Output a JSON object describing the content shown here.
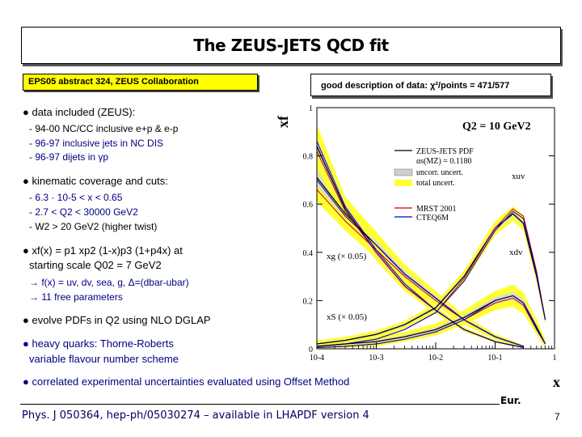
{
  "title": "The ZEUS-JETS QCD fit",
  "reference_box": "EPS05 abstract 324, ZEUS Collaboration",
  "chi2_box": {
    "prefix": "good description of data:",
    "symbol": "χ²/points = 471/577"
  },
  "bullets": {
    "data_heading": "data included (ZEUS):",
    "data_items": [
      "- 94-00 NC/CC inclusive e+p & e-p",
      "- 96-97 inclusive jets in NC DIS",
      "- 96-97 dijets in γp"
    ],
    "kin_heading": "kinematic coverage and cuts:",
    "kin_items": [
      "- 6.3 · 10-5 < x < 0.65",
      "- 2.7 < Q2 < 30000 GeV2",
      "- W2 > 20 GeV2 (higher twist)"
    ],
    "param_line1": "xf(x) = p1 xp2 (1-x)p3 (1+p4x) at",
    "param_line2": "starting scale Q02 = 7 GeV2",
    "param_items": [
      "→ f(x) = uv, dv, sea, g, Δ=(dbar-ubar)",
      "→ 11 free parameters"
    ],
    "evolve": "evolve PDFs in Q2 using NLO DGLAP",
    "heavy_line1": "heavy quarks: Thorne-Roberts",
    "heavy_line2": "variable flavour number scheme",
    "correlated": "correlated experimental uncertainties evaluated using Offset Method"
  },
  "footer": {
    "reference": "Phys. J 050364, hep-ph/05030274 – available in LHAPDF version 4",
    "eur": "Eur.",
    "page_number": "7"
  },
  "chart_data": {
    "type": "line",
    "title": "Q2 = 10 GeV2",
    "xlabel": "x",
    "ylabel": "xf",
    "xscale": "log",
    "xlim": [
      0.0001,
      1
    ],
    "ylim": [
      0,
      1
    ],
    "yticks": [
      0,
      0.2,
      0.4,
      0.6,
      0.8,
      1
    ],
    "xticks": [
      0.0001,
      0.001,
      0.01,
      0.1,
      1
    ],
    "ytick_labels": [
      "0",
      "0.2",
      "0.4",
      "0.6",
      "0.8",
      "1"
    ],
    "xtick_labels": [
      "10-4",
      "10-3",
      "10-2",
      "10-1",
      "1"
    ],
    "legend": {
      "pdf_name": "ZEUS-JETS PDF",
      "alphas": "αs(MZ) = 0.1180",
      "uncorr": "uncorr. uncert.",
      "total": "total uncert.",
      "mrst": "MRST 2001",
      "cteq": "CTEQ6M"
    },
    "curve_labels": {
      "xuv": "xuv",
      "xdv": "xdv",
      "xg": "xg (× 0.05)",
      "xS": "xS (× 0.05)"
    },
    "series": [
      {
        "name": "xg (x0.05) ZEUS-JETS",
        "color": "#000000",
        "x": [
          0.0001,
          0.0003,
          0.001,
          0.003,
          0.01,
          0.03,
          0.1,
          0.3
        ],
        "y": [
          0.71,
          0.56,
          0.43,
          0.31,
          0.21,
          0.12,
          0.05,
          0.01
        ],
        "err": [
          0.1,
          0.07,
          0.055,
          0.04,
          0.03,
          0.02,
          0.012,
          0.005
        ]
      },
      {
        "name": "xg (x0.05) MRST 2001",
        "color": "#cc0000",
        "x": [
          0.0001,
          0.0003,
          0.001,
          0.003,
          0.01,
          0.03,
          0.1,
          0.3
        ],
        "y": [
          0.66,
          0.53,
          0.41,
          0.3,
          0.2,
          0.12,
          0.05,
          0.01
        ]
      },
      {
        "name": "xg (x0.05) CTEQ6M",
        "color": "#0000cc",
        "x": [
          0.0001,
          0.0003,
          0.001,
          0.003,
          0.01,
          0.03,
          0.1,
          0.3
        ],
        "y": [
          0.7,
          0.55,
          0.43,
          0.31,
          0.21,
          0.12,
          0.05,
          0.01
        ]
      },
      {
        "name": "xS (x0.05) ZEUS-JETS",
        "color": "#000000",
        "x": [
          0.0001,
          0.0003,
          0.001,
          0.003,
          0.01,
          0.03,
          0.1,
          0.3
        ],
        "y": [
          0.84,
          0.58,
          0.4,
          0.26,
          0.16,
          0.08,
          0.03,
          0.005
        ],
        "err": [
          0.09,
          0.05,
          0.035,
          0.02,
          0.014,
          0.009,
          0.005,
          0.002
        ]
      },
      {
        "name": "xS (x0.05) MRST 2001",
        "color": "#cc0000",
        "x": [
          0.0001,
          0.0003,
          0.001,
          0.003,
          0.01,
          0.03,
          0.1,
          0.3
        ],
        "y": [
          0.82,
          0.57,
          0.4,
          0.26,
          0.16,
          0.08,
          0.03,
          0.005
        ]
      },
      {
        "name": "xS (x0.05) CTEQ6M",
        "color": "#0000cc",
        "x": [
          0.0001,
          0.0003,
          0.001,
          0.003,
          0.01,
          0.03,
          0.1,
          0.3
        ],
        "y": [
          0.86,
          0.59,
          0.41,
          0.27,
          0.16,
          0.08,
          0.03,
          0.005
        ]
      },
      {
        "name": "xuv ZEUS-JETS",
        "color": "#000000",
        "x": [
          0.0001,
          0.0003,
          0.001,
          0.003,
          0.01,
          0.03,
          0.1,
          0.2,
          0.3,
          0.5,
          0.7
        ],
        "y": [
          0.02,
          0.035,
          0.06,
          0.1,
          0.17,
          0.3,
          0.5,
          0.56,
          0.52,
          0.3,
          0.12
        ],
        "err": [
          0.015,
          0.015,
          0.015,
          0.015,
          0.02,
          0.025,
          0.03,
          0.03,
          0.03,
          0.025,
          0.02
        ]
      },
      {
        "name": "xuv MRST 2001",
        "color": "#cc0000",
        "x": [
          0.0001,
          0.0003,
          0.001,
          0.003,
          0.01,
          0.03,
          0.1,
          0.2,
          0.3,
          0.5,
          0.7
        ],
        "y": [
          0.01,
          0.02,
          0.04,
          0.08,
          0.15,
          0.29,
          0.5,
          0.58,
          0.55,
          0.32,
          0.12
        ]
      },
      {
        "name": "xuv CTEQ6M",
        "color": "#0000cc",
        "x": [
          0.0001,
          0.0003,
          0.001,
          0.003,
          0.01,
          0.03,
          0.1,
          0.2,
          0.3,
          0.5,
          0.7
        ],
        "y": [
          0.01,
          0.02,
          0.04,
          0.08,
          0.15,
          0.28,
          0.49,
          0.57,
          0.54,
          0.31,
          0.12
        ]
      },
      {
        "name": "xdv ZEUS-JETS",
        "color": "#000000",
        "x": [
          0.0001,
          0.0003,
          0.001,
          0.003,
          0.01,
          0.03,
          0.1,
          0.2,
          0.3,
          0.5,
          0.7
        ],
        "y": [
          0.01,
          0.02,
          0.03,
          0.05,
          0.08,
          0.13,
          0.2,
          0.22,
          0.19,
          0.09,
          0.02
        ],
        "err": [
          0.015,
          0.015,
          0.02,
          0.02,
          0.025,
          0.03,
          0.04,
          0.045,
          0.045,
          0.03,
          0.02
        ]
      },
      {
        "name": "xdv MRST 2001",
        "color": "#cc0000",
        "x": [
          0.0001,
          0.0003,
          0.001,
          0.003,
          0.01,
          0.03,
          0.1,
          0.2,
          0.3,
          0.5,
          0.7
        ],
        "y": [
          0.005,
          0.01,
          0.02,
          0.04,
          0.07,
          0.12,
          0.19,
          0.21,
          0.18,
          0.08,
          0.02
        ]
      },
      {
        "name": "xdv CTEQ6M",
        "color": "#0000cc",
        "x": [
          0.0001,
          0.0003,
          0.001,
          0.003,
          0.01,
          0.03,
          0.1,
          0.2,
          0.3,
          0.5,
          0.7
        ],
        "y": [
          0.005,
          0.01,
          0.02,
          0.04,
          0.07,
          0.12,
          0.2,
          0.22,
          0.19,
          0.08,
          0.02
        ]
      }
    ]
  }
}
